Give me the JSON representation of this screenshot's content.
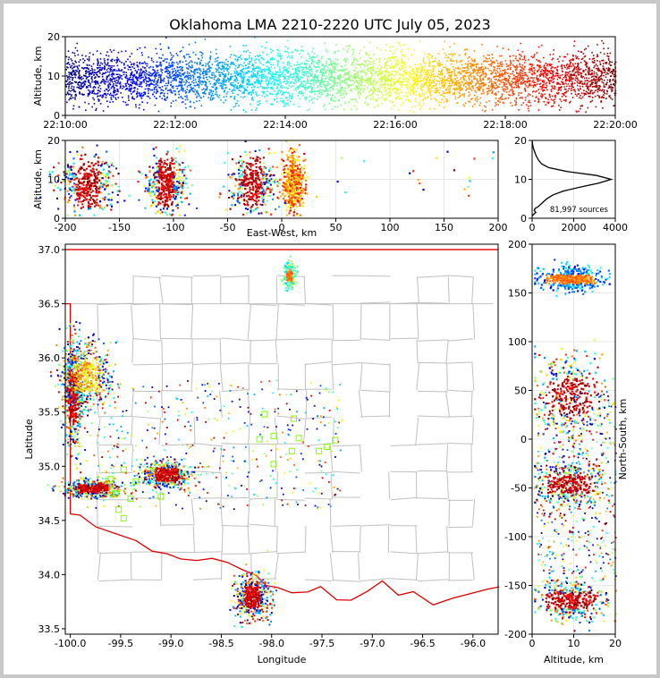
{
  "colors": {
    "background": "#ffffff",
    "border": "#c8c8c8",
    "state_line": "#e00000",
    "county_line": "#c0c0c0",
    "grid": "#e0e0e0",
    "box_marker": "#80ff00"
  },
  "chart_data": [
    {
      "id": "time-altitude",
      "type": "scatter",
      "title": "Oklahoma LMA 2210-2220 UTC July 05, 2023",
      "xlabel": "",
      "ylabel": "Altitude, km",
      "xlim": [
        "22:10:00",
        "22:20:00"
      ],
      "ylim": [
        0,
        20
      ],
      "x_ticks": [
        "22:10:00",
        "22:12:00",
        "22:14:00",
        "22:16:00",
        "22:18:00",
        "22:20:00"
      ],
      "y_ticks": [
        0,
        10,
        20
      ],
      "color_scale": "time (blue → red)",
      "altitude_range_km": [
        1,
        20
      ],
      "dense_altitude_km": [
        3,
        15
      ]
    },
    {
      "id": "ew-altitude",
      "type": "scatter",
      "xlabel": "East-West, km",
      "ylabel": "Altitude, km",
      "xlim": [
        -200,
        200
      ],
      "ylim": [
        0,
        20
      ],
      "x_ticks": [
        -200,
        -150,
        -100,
        -50,
        0,
        50,
        100,
        150,
        200
      ],
      "y_ticks": [
        0,
        10,
        20
      ],
      "clusters_ew_km": [
        -180,
        -108,
        -28,
        10
      ]
    },
    {
      "id": "altitude-histogram",
      "type": "line",
      "xlim": [
        0,
        4000
      ],
      "ylim": [
        0,
        20
      ],
      "x_ticks": [
        0,
        2000,
        4000
      ],
      "y_ticks": [
        0,
        10,
        20
      ],
      "annotation": "81,997 sources",
      "profile": [
        {
          "alt": 0.5,
          "count": 0
        },
        {
          "alt": 1,
          "count": 60
        },
        {
          "alt": 1.5,
          "count": 180
        },
        {
          "alt": 2,
          "count": 100
        },
        {
          "alt": 2.5,
          "count": 140
        },
        {
          "alt": 3,
          "count": 300
        },
        {
          "alt": 4,
          "count": 500
        },
        {
          "alt": 5,
          "count": 700
        },
        {
          "alt": 6,
          "count": 1000
        },
        {
          "alt": 7,
          "count": 1500
        },
        {
          "alt": 8,
          "count": 2300
        },
        {
          "alt": 9,
          "count": 3200
        },
        {
          "alt": 10,
          "count": 3800
        },
        {
          "alt": 11,
          "count": 3100
        },
        {
          "alt": 12,
          "count": 1700
        },
        {
          "alt": 13,
          "count": 800
        },
        {
          "alt": 14,
          "count": 450
        },
        {
          "alt": 15,
          "count": 300
        },
        {
          "alt": 16,
          "count": 200
        },
        {
          "alt": 17,
          "count": 130
        },
        {
          "alt": 18,
          "count": 60
        },
        {
          "alt": 19,
          "count": 20
        },
        {
          "alt": 20,
          "count": 5
        }
      ]
    },
    {
      "id": "plan-view",
      "type": "scatter",
      "xlabel": "Longitude",
      "ylabel": "Latitude",
      "xlim": [
        -100.05,
        -95.75
      ],
      "ylim": [
        33.45,
        37.05
      ],
      "x_ticks": [
        -100.0,
        -99.5,
        -99.0,
        -98.5,
        -98.0,
        -97.5,
        -97.0,
        -96.5,
        -96.0
      ],
      "y_ticks": [
        33.5,
        34.0,
        34.5,
        35.0,
        35.5,
        36.0,
        36.5,
        37.0
      ],
      "x_tick_labels": [
        "-100.0",
        "-99.5",
        "-99.0",
        "-98.5",
        "-98.0",
        "-97.5",
        "-97.0",
        "-96.5",
        "-96.0"
      ],
      "y_tick_labels": [
        "33.5",
        "34.0",
        "34.5",
        "35.0",
        "35.5",
        "36.0",
        "36.5",
        "37.0"
      ],
      "clusters": [
        {
          "lon": -99.98,
          "lat": 35.65,
          "spread_lon": 0.05,
          "spread_lat": 0.25,
          "color": "red"
        },
        {
          "lon": -99.85,
          "lat": 35.85,
          "spread_lon": 0.12,
          "spread_lat": 0.15,
          "color": "mixed"
        },
        {
          "lon": -99.78,
          "lat": 34.8,
          "spread_lon": 0.15,
          "spread_lat": 0.04,
          "color": "red"
        },
        {
          "lon": -99.05,
          "lat": 34.93,
          "spread_lon": 0.12,
          "spread_lat": 0.06,
          "color": "red"
        },
        {
          "lon": -98.2,
          "lat": 33.8,
          "spread_lon": 0.08,
          "spread_lat": 0.1,
          "color": "red"
        },
        {
          "lon": -97.83,
          "lat": 36.77,
          "spread_lon": 0.03,
          "spread_lat": 0.06,
          "color": "orange"
        }
      ],
      "stations": [
        {
          "lon": -99.47,
          "lat": 34.97
        },
        {
          "lon": -99.55,
          "lat": 34.75
        },
        {
          "lon": -99.6,
          "lat": 34.88
        },
        {
          "lon": -99.35,
          "lat": 34.86
        },
        {
          "lon": -99.4,
          "lat": 34.7
        },
        {
          "lon": -99.52,
          "lat": 34.6
        },
        {
          "lon": -99.47,
          "lat": 34.52
        },
        {
          "lon": -99.1,
          "lat": 34.72
        },
        {
          "lon": -98.07,
          "lat": 35.48
        },
        {
          "lon": -97.78,
          "lat": 35.44
        },
        {
          "lon": -97.98,
          "lat": 35.28
        },
        {
          "lon": -98.12,
          "lat": 35.25
        },
        {
          "lon": -97.73,
          "lat": 35.26
        },
        {
          "lon": -97.37,
          "lat": 35.24
        },
        {
          "lon": -97.45,
          "lat": 35.18
        },
        {
          "lon": -97.8,
          "lat": 35.14
        },
        {
          "lon": -97.53,
          "lat": 35.14
        },
        {
          "lon": -97.98,
          "lat": 35.02
        }
      ]
    },
    {
      "id": "altitude-ns",
      "type": "scatter",
      "xlabel": "Altitude, km",
      "ylabel": "North-South, km",
      "xlim": [
        0,
        20
      ],
      "ylim": [
        -200,
        200
      ],
      "x_ticks": [
        0,
        10,
        20
      ],
      "y_ticks": [
        -200,
        -150,
        -100,
        -50,
        0,
        50,
        100,
        150,
        200
      ],
      "clusters_ns_km": [
        165,
        45,
        -45,
        -165
      ]
    }
  ]
}
